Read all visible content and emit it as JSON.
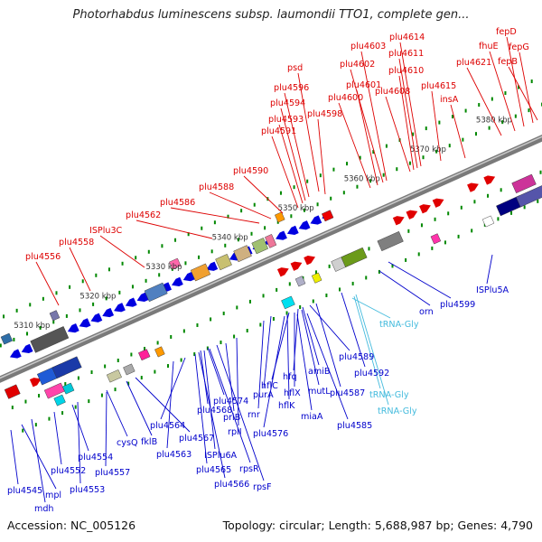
{
  "title": "Photorhabdus luminescens subsp. laumondii TTO1, complete gen...",
  "footer": {
    "accession": "Accession: NC_005126",
    "summary": "Topology: circular; Length: 5,688,987 bp; Genes: 4,790"
  },
  "colors": {
    "top_strand_label": "#dd0000",
    "bottom_strand_label": "#0000cc",
    "rna_label": "#44bbdd",
    "backbone": "#7a7a7a",
    "tick": "#008800"
  },
  "scale_labels": [
    "5310 kbp",
    "5320 kbp",
    "5330 kbp",
    "5340 kbp",
    "5350 kbp",
    "5360 kbp",
    "5370 kbp",
    "5380 kbp"
  ],
  "top_labels": [
    "psd",
    "plu4596",
    "plu4594",
    "plu4593",
    "plu4591",
    "plu4598",
    "plu4603",
    "plu4602",
    "plu4601",
    "plu4600",
    "plu4614",
    "plu4611",
    "plu4610",
    "plu4608",
    "plu4615",
    "insA",
    "plu4621",
    "fhuE",
    "fepD",
    "fepG",
    "fepB",
    "plu4590",
    "plu4588",
    "plu4586",
    "plu4562",
    "ISPlu3C",
    "plu4558",
    "plu4556"
  ],
  "bottom_labels": [
    "plu4599",
    "orn",
    "ISPlu5A",
    "plu4589",
    "amiB",
    "hfq",
    "hflC",
    "hflX",
    "mutL",
    "plu4587",
    "plu4592",
    "hflK",
    "miaA",
    "plu4585",
    "plu4574",
    "purA",
    "rnr",
    "priB",
    "rplI",
    "plu4576",
    "plu4568",
    "plu4567",
    "fklB",
    "cysQ",
    "plu4564",
    "plu4563",
    "ISPlu6A",
    "rpsR",
    "plu4565",
    "plu4566",
    "rpsF",
    "plu4554",
    "plu4557",
    "plu4552",
    "plu4553",
    "plu4545",
    "mpl",
    "mdh"
  ],
  "rna_labels": [
    "tRNA-Gly",
    "tRNA-Gly",
    "tRNA-Gly"
  ]
}
